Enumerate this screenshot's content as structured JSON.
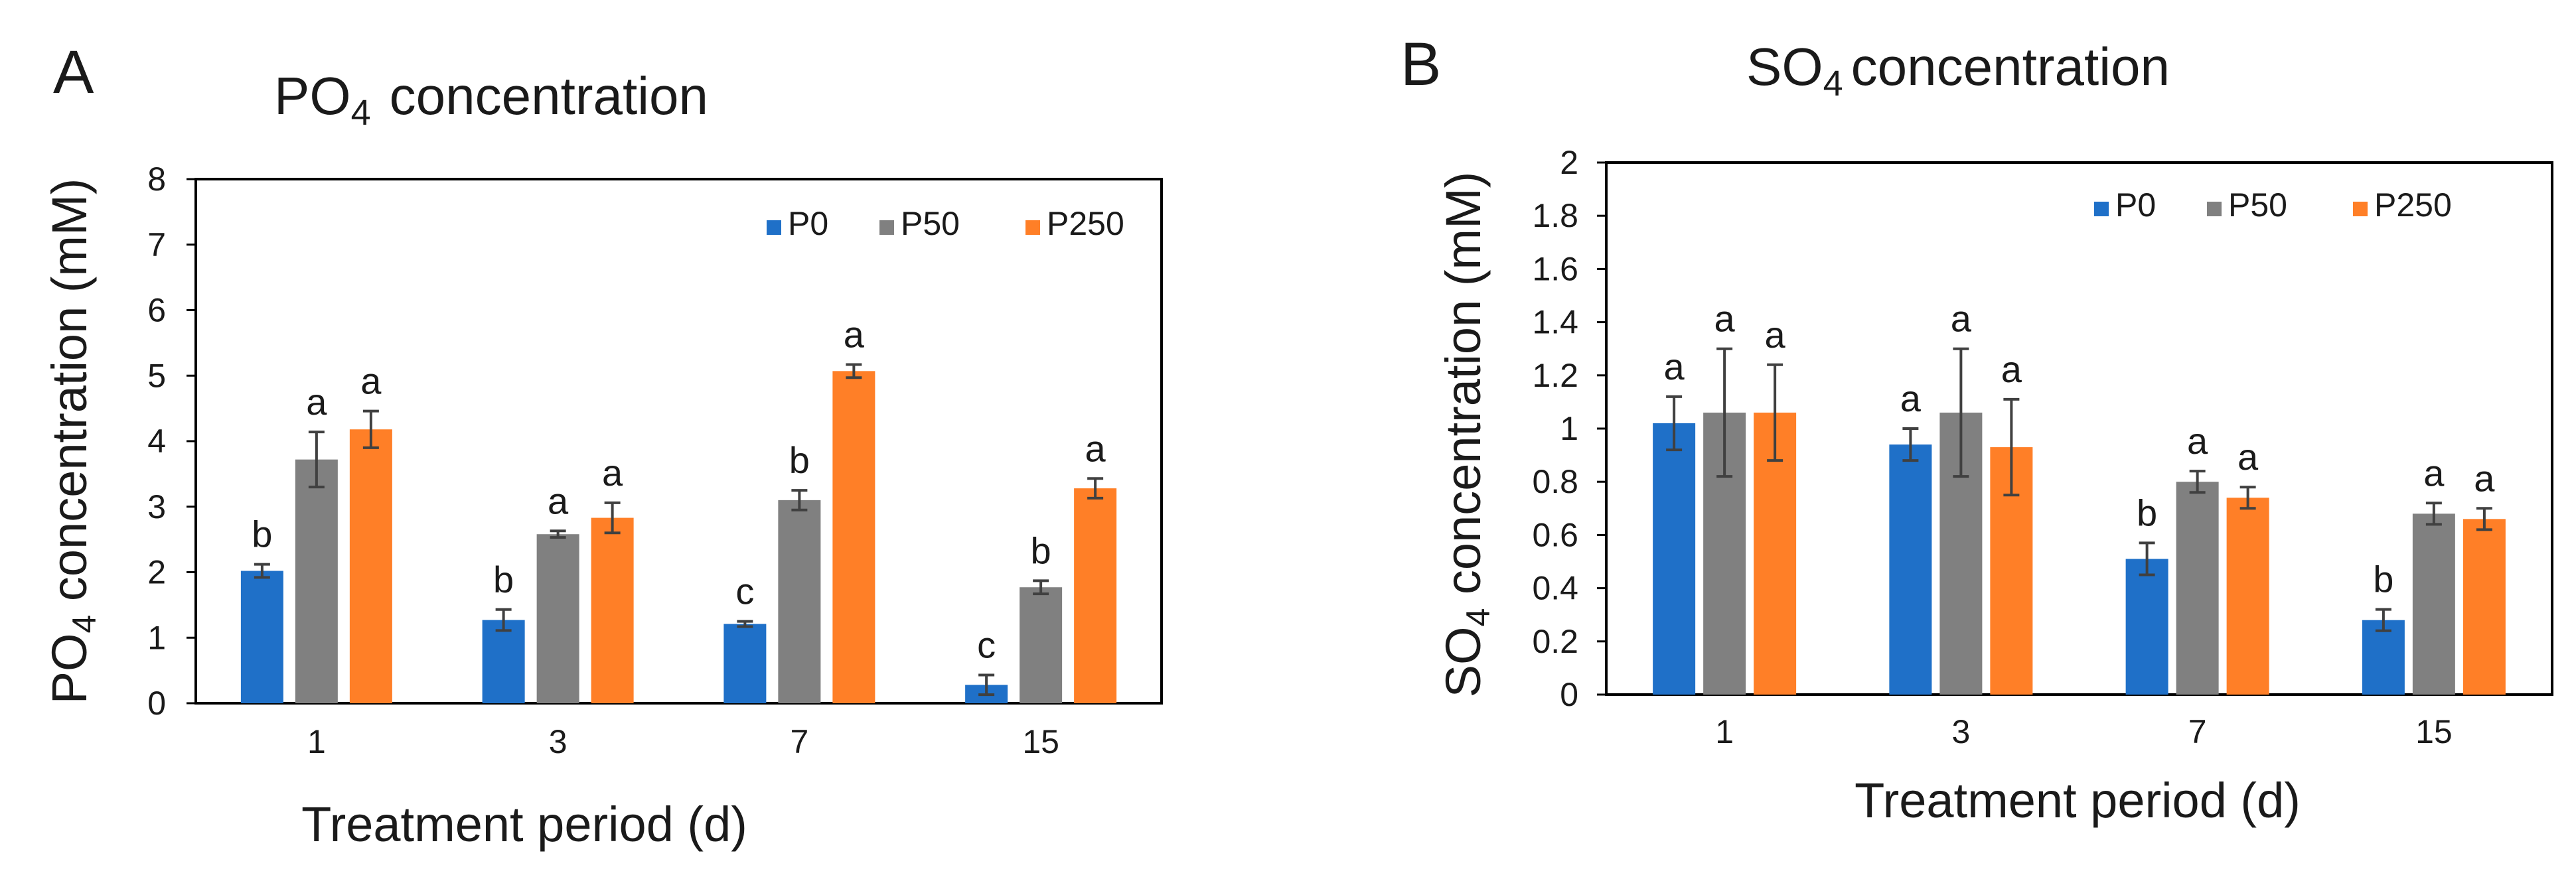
{
  "figure": {
    "colors": {
      "P0": "#1F70C8",
      "P50": "#808080",
      "P250": "#FF7F27",
      "error_bar": "#404040",
      "axis": "#000000"
    }
  },
  "chart_data": [
    {
      "panel": "A",
      "type": "bar",
      "title": "PO4 concentration",
      "title_main": "PO",
      "title_sub": "4",
      "title_rest": "concentration",
      "xlabel": "Treatment period (d)",
      "ylabel": "PO4 concentration (mM)",
      "ylabel_main": "PO",
      "ylabel_sub": "4",
      "ylabel_rest": " concentration (mM)",
      "categories": [
        "1",
        "3",
        "7",
        "15"
      ],
      "ylim": [
        0,
        8
      ],
      "yticks": [
        "0",
        "1",
        "2",
        "3",
        "4",
        "5",
        "6",
        "7",
        "8"
      ],
      "ytick_values": [
        0,
        1,
        2,
        3,
        4,
        5,
        6,
        7,
        8
      ],
      "legend": "top-right",
      "grid": false,
      "series": [
        {
          "name": "P0",
          "values": [
            2.02,
            1.27,
            1.21,
            0.28
          ],
          "errors": [
            0.1,
            0.16,
            0.04,
            0.15
          ],
          "labels": [
            "b",
            "b",
            "c",
            "c"
          ]
        },
        {
          "name": "P50",
          "values": [
            3.72,
            2.58,
            3.1,
            1.77
          ],
          "errors": [
            0.42,
            0.05,
            0.15,
            0.1
          ],
          "labels": [
            "a",
            "a",
            "b",
            "b"
          ]
        },
        {
          "name": "P250",
          "values": [
            4.18,
            2.83,
            5.07,
            3.28
          ],
          "errors": [
            0.28,
            0.23,
            0.1,
            0.15
          ],
          "labels": [
            "a",
            "a",
            "a",
            "a"
          ]
        }
      ]
    },
    {
      "panel": "B",
      "type": "bar",
      "title": "SO4 concentration",
      "title_main": "SO",
      "title_sub": "4",
      "title_rest": "concentration",
      "xlabel": "Treatment period (d)",
      "ylabel": "SO4 concentration (mM)",
      "ylabel_main": "SO",
      "ylabel_sub": "4",
      "ylabel_rest": " concentration (mM)",
      "categories": [
        "1",
        "3",
        "7",
        "15"
      ],
      "ylim": [
        0,
        2
      ],
      "yticks": [
        "0",
        "0.2",
        "0.4",
        "0.6",
        "0.8",
        "1",
        "1.2",
        "1.4",
        "1.6",
        "1.8",
        "2"
      ],
      "ytick_values": [
        0,
        0.2,
        0.4,
        0.6,
        0.8,
        1,
        1.2,
        1.4,
        1.6,
        1.8,
        2
      ],
      "legend": "top-right",
      "grid": false,
      "series": [
        {
          "name": "P0",
          "values": [
            1.02,
            0.94,
            0.51,
            0.28
          ],
          "errors": [
            0.1,
            0.06,
            0.06,
            0.04
          ],
          "labels": [
            "a",
            "a",
            "b",
            "b"
          ]
        },
        {
          "name": "P50",
          "values": [
            1.06,
            1.06,
            0.8,
            0.68
          ],
          "errors": [
            0.24,
            0.24,
            0.04,
            0.04
          ],
          "labels": [
            "a",
            "a",
            "a",
            "a"
          ]
        },
        {
          "name": "P250",
          "values": [
            1.06,
            0.93,
            0.74,
            0.66
          ],
          "errors": [
            0.18,
            0.18,
            0.04,
            0.04
          ],
          "labels": [
            "a",
            "a",
            "a",
            "a"
          ]
        }
      ]
    }
  ]
}
